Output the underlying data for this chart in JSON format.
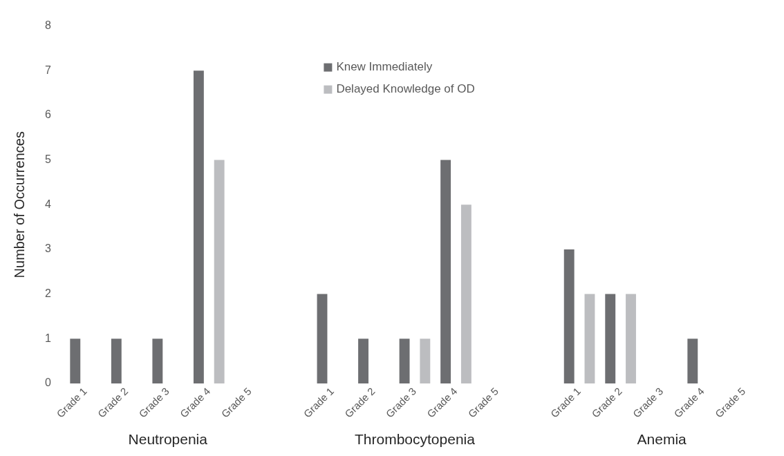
{
  "chart_data": {
    "type": "bar",
    "ylabel": "Number of Occurrences",
    "categories": [
      "Grade 1",
      "Grade 2",
      "Grade 3",
      "Grade 4",
      "Grade 5",
      null,
      "Grade 1",
      "Grade 2",
      "Grade 3",
      "Grade 4",
      "Grade 5",
      null,
      "Grade 1",
      "Grade 2",
      "Grade 3",
      "Grade 4",
      "Grade 5"
    ],
    "series": [
      {
        "name": "Knew Immediately",
        "color": "#6d6e71",
        "values": [
          1,
          1,
          1,
          7,
          0,
          null,
          2,
          1,
          1,
          5,
          0,
          null,
          3,
          2,
          0,
          1,
          0
        ]
      },
      {
        "name": "Delayed Knowledge of OD",
        "color": "#bcbdc0",
        "values": [
          0,
          0,
          0,
          5,
          0,
          null,
          0,
          0,
          1,
          4,
          0,
          null,
          2,
          2,
          0,
          0,
          0
        ]
      }
    ],
    "ylim": [
      0,
      8
    ],
    "yticks": [
      0,
      1,
      2,
      3,
      4,
      5,
      6,
      7,
      8
    ],
    "grid": false,
    "legend": "top",
    "annotations": [
      "Neutropenia",
      "Thrombocytopenia",
      "Anemia"
    ]
  }
}
